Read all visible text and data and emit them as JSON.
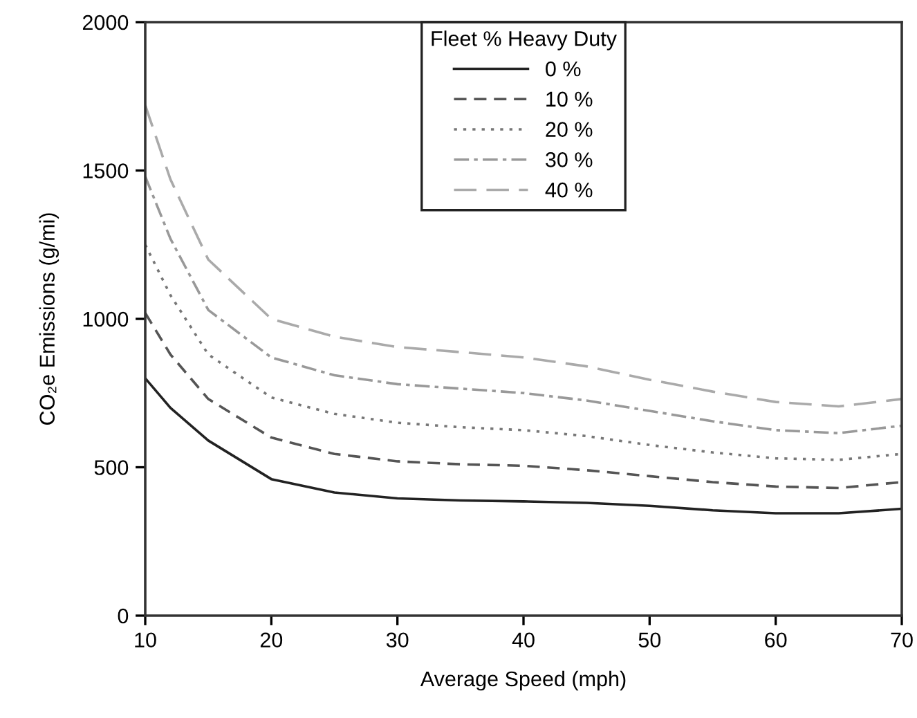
{
  "chart_data": {
    "type": "line",
    "xlabel": "Average Speed (mph)",
    "ylabel": "CO₂e Emissions (g/mi)",
    "legend_title": "Fleet % Heavy Duty",
    "x": [
      10,
      12,
      15,
      20,
      25,
      30,
      35,
      40,
      45,
      50,
      55,
      60,
      65,
      70
    ],
    "series": [
      {
        "name": "0 %",
        "color": "#222222",
        "line_style": "solid",
        "values": [
          800,
          700,
          590,
          460,
          415,
          395,
          388,
          385,
          380,
          370,
          355,
          345,
          345,
          360
        ]
      },
      {
        "name": "10 %",
        "color": "#555555",
        "line_style": "dashed",
        "values": [
          1020,
          880,
          730,
          600,
          545,
          520,
          510,
          505,
          490,
          470,
          450,
          435,
          430,
          450
        ]
      },
      {
        "name": "20 %",
        "color": "#777777",
        "line_style": "dotted",
        "values": [
          1250,
          1080,
          880,
          735,
          680,
          650,
          635,
          625,
          605,
          575,
          550,
          530,
          525,
          545
        ]
      },
      {
        "name": "30 %",
        "color": "#999999",
        "line_style": "dashdot",
        "values": [
          1480,
          1270,
          1030,
          870,
          810,
          780,
          765,
          750,
          725,
          690,
          655,
          625,
          615,
          640
        ]
      },
      {
        "name": "40 %",
        "color": "#aaaaaa",
        "line_style": "longdash",
        "values": [
          1720,
          1470,
          1200,
          1000,
          940,
          905,
          888,
          870,
          840,
          795,
          755,
          720,
          705,
          730
        ]
      }
    ],
    "xlim": [
      10,
      70
    ],
    "xticks": [
      10,
      20,
      30,
      40,
      50,
      60,
      70
    ],
    "ylim": [
      0,
      2000
    ],
    "yticks": [
      0,
      500,
      1000,
      1500,
      2000
    ],
    "grid": false,
    "legend": "top"
  }
}
